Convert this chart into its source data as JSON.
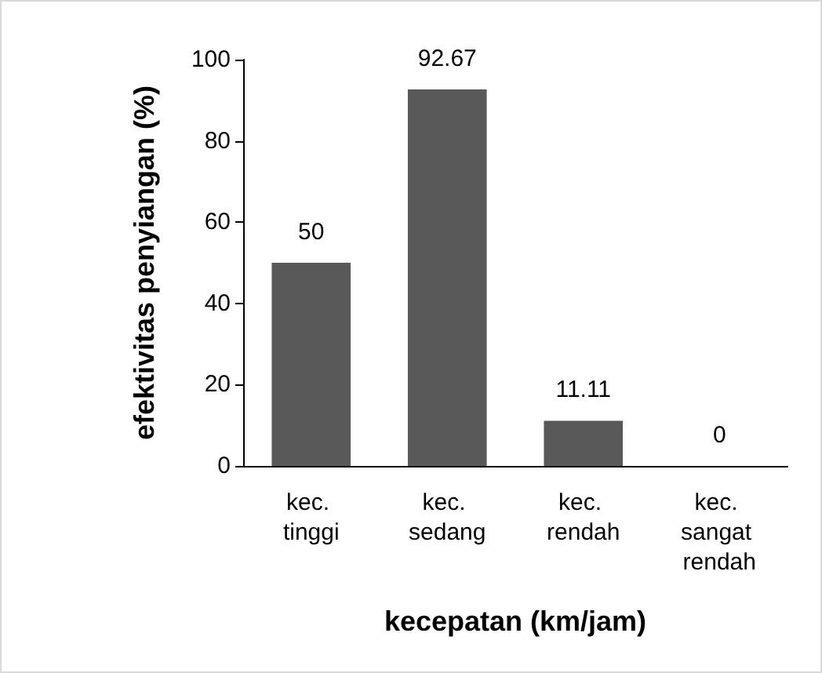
{
  "chart_data": {
    "type": "bar",
    "xlabel": "kecepatan (km/jam)",
    "ylabel": "efektivitas penyiangan (%)",
    "categories": [
      "kec. tinggi",
      "kec. sedang",
      "kec. rendah",
      "kec. sangat rendah"
    ],
    "values": [
      50,
      92.67,
      11.11,
      0
    ],
    "color": "#595959",
    "ylim": [
      0,
      100
    ],
    "yticks": [
      0,
      20,
      40,
      60,
      80,
      100
    ],
    "grid": false,
    "data_labels": true
  }
}
